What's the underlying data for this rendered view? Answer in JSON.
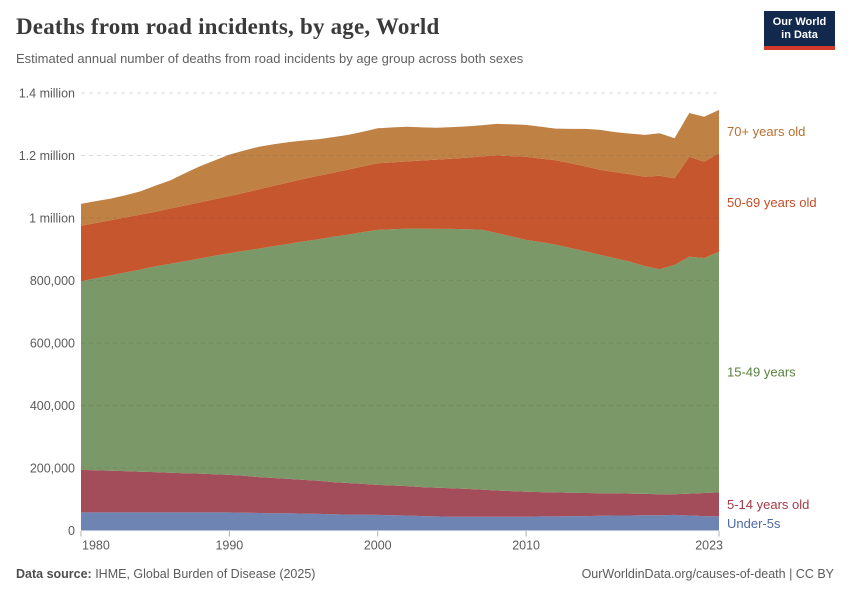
{
  "header": {
    "title": "Deaths from road incidents, by age, World",
    "subtitle": "Estimated annual number of deaths from road incidents by age group across both sexes",
    "logo": {
      "line1": "Our World",
      "line2": "in Data",
      "bg_color": "#12294d",
      "accent_color": "#d23a2b"
    }
  },
  "chart_data": {
    "type": "area",
    "stacked": true,
    "title": "Deaths from road incidents, by age, World",
    "xlabel": "",
    "ylabel": "",
    "ylim": [
      0,
      1400000
    ],
    "grid": "dashed-horizontal",
    "legend_position": "right-of-plot",
    "x": [
      1980,
      1981,
      1982,
      1983,
      1984,
      1985,
      1986,
      1987,
      1988,
      1989,
      1990,
      1991,
      1992,
      1993,
      1994,
      1995,
      1996,
      1997,
      1998,
      1999,
      2000,
      2001,
      2002,
      2003,
      2004,
      2005,
      2006,
      2007,
      2008,
      2009,
      2010,
      2011,
      2012,
      2013,
      2014,
      2015,
      2016,
      2017,
      2018,
      2019,
      2020,
      2021,
      2022,
      2023
    ],
    "series": [
      {
        "name": "Under-5s",
        "color": "#6e84b2",
        "label_color": "#4c6aa8",
        "values": [
          58000,
          58000,
          58000,
          58000,
          58000,
          58000,
          58000,
          58000,
          58000,
          58000,
          58000,
          57000,
          56000,
          55000,
          55000,
          54000,
          53000,
          52000,
          51000,
          51000,
          50000,
          49000,
          48000,
          46000,
          45000,
          44000,
          44000,
          44000,
          44000,
          44000,
          44000,
          45000,
          45000,
          46000,
          46000,
          47000,
          48000,
          48000,
          49000,
          49000,
          50000,
          48000,
          46000,
          45000
        ]
      },
      {
        "name": "5-14 years old",
        "color": "#a44d5a",
        "label_color": "#a23a49",
        "values": [
          136000,
          135000,
          133000,
          132000,
          130000,
          129000,
          127000,
          125000,
          124000,
          122000,
          120000,
          118000,
          115000,
          113000,
          110000,
          108000,
          106000,
          103000,
          101000,
          98000,
          96000,
          95000,
          94000,
          93000,
          92000,
          91000,
          89000,
          87000,
          84000,
          82000,
          80000,
          78000,
          77000,
          75000,
          74000,
          72000,
          71000,
          70000,
          68000,
          67000,
          66000,
          70000,
          74000,
          77000
        ]
      },
      {
        "name": "15-49 years",
        "color": "#7a9868",
        "label_color": "#588141",
        "values": [
          603000,
          614000,
          625000,
          636000,
          647000,
          658000,
          668000,
          679000,
          688000,
          699000,
          709000,
          720000,
          731000,
          742000,
          752000,
          763000,
          773000,
          785000,
          795000,
          806000,
          816000,
          820000,
          824000,
          827000,
          828000,
          830000,
          831000,
          832000,
          824000,
          815000,
          806000,
          800000,
          793000,
          783000,
          773000,
          763000,
          752000,
          742000,
          729000,
          720000,
          734000,
          758000,
          752000,
          770000
        ]
      },
      {
        "name": "50-69 years old",
        "color": "#c5562d",
        "label_color": "#c44e27",
        "values": [
          178000,
          177000,
          177000,
          176000,
          176000,
          175000,
          177000,
          178000,
          180000,
          181000,
          183000,
          186000,
          190000,
          193000,
          197000,
          200000,
          203000,
          205000,
          208000,
          210000,
          213000,
          214000,
          215000,
          218000,
          222000,
          225000,
          229000,
          234000,
          248000,
          257000,
          266000,
          267000,
          270000,
          271000,
          272000,
          272000,
          276000,
          280000,
          286000,
          299000,
          277000,
          320000,
          308000,
          315000
        ]
      },
      {
        "name": "70+ years old",
        "color": "#c08145",
        "label_color": "#b9702f",
        "values": [
          70000,
          70000,
          69000,
          71000,
          74000,
          83000,
          90000,
          103000,
          115000,
          124000,
          133000,
          135000,
          136000,
          133000,
          129000,
          123000,
          117000,
          114000,
          111000,
          111000,
          112000,
          112000,
          111000,
          106000,
          102000,
          101000,
          100000,
          100000,
          101000,
          102000,
          102000,
          102000,
          101000,
          110000,
          120000,
          128000,
          128000,
          130000,
          134000,
          136000,
          128000,
          140000,
          144000,
          139000
        ]
      }
    ],
    "y_ticks": [
      {
        "value": 0,
        "label": "0"
      },
      {
        "value": 200000,
        "label": "200,000"
      },
      {
        "value": 400000,
        "label": "400,000"
      },
      {
        "value": 600000,
        "label": "600,000"
      },
      {
        "value": 800000,
        "label": "800,000"
      },
      {
        "value": 1000000,
        "label": "1 million"
      },
      {
        "value": 1200000,
        "label": "1.2 million"
      },
      {
        "value": 1400000,
        "label": "1.4 million"
      }
    ],
    "x_ticks": [
      {
        "year": 1980,
        "label": "1980"
      },
      {
        "year": 1990,
        "label": "1990"
      },
      {
        "year": 2000,
        "label": "2000"
      },
      {
        "year": 2010,
        "label": "2010"
      },
      {
        "year": 2023,
        "label": "2023"
      }
    ]
  },
  "footer": {
    "source_label": "Data source:",
    "source_value": " IHME, Global Burden of Disease (2025)",
    "credit": "OurWorldinData.org/causes-of-death | CC BY"
  }
}
